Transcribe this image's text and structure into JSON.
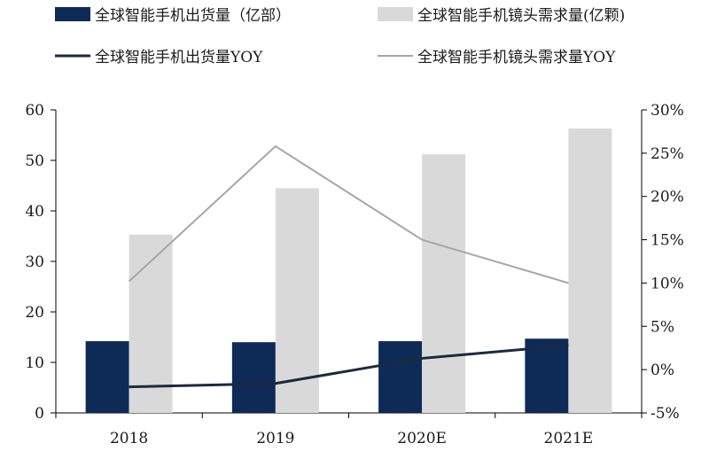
{
  "chart_data": {
    "type": "bar",
    "categories": [
      "2018",
      "2019",
      "2020E",
      "2021E"
    ],
    "series": [
      {
        "name": "全球智能手机出货量（亿部）",
        "kind": "bar",
        "axis": "left",
        "color": "#0d2b56",
        "values": [
          14.2,
          14.0,
          14.2,
          14.7
        ]
      },
      {
        "name": "全球智能手机镜头需求量(亿颗)",
        "kind": "bar",
        "axis": "left",
        "color": "#d9d9d9",
        "values": [
          35.3,
          44.5,
          51.2,
          56.3
        ]
      },
      {
        "name": "全球智能手机出货量YOY",
        "kind": "line",
        "axis": "right",
        "color": "#1b2a3e",
        "values": [
          -2.0,
          -1.6,
          1.3,
          2.8
        ]
      },
      {
        "name": "全球智能手机镜头需求量YOY",
        "kind": "line",
        "axis": "right",
        "color": "#a6a6a6",
        "values": [
          10.2,
          25.8,
          15.0,
          10.0
        ]
      }
    ],
    "y_left": {
      "min": 0,
      "max": 60,
      "step": 10,
      "ticks": [
        "0",
        "10",
        "20",
        "30",
        "40",
        "50",
        "60"
      ]
    },
    "y_right": {
      "min": -5,
      "max": 30,
      "step": 5,
      "ticks": [
        "-5%",
        "0%",
        "5%",
        "10%",
        "15%",
        "20%",
        "25%",
        "30%"
      ]
    },
    "legend": {
      "placement": "top"
    }
  }
}
